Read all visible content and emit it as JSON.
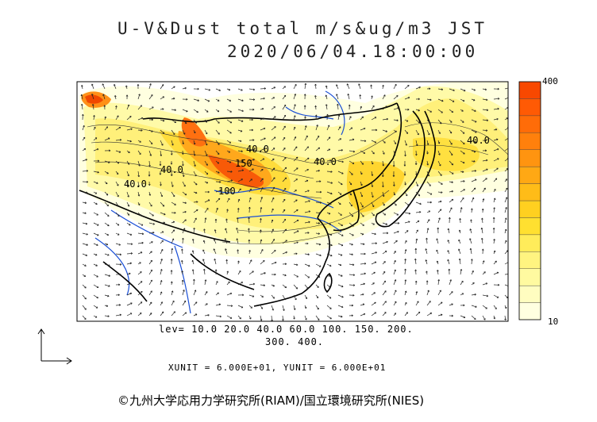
{
  "title": {
    "line1": "U-V&Dust total m/s&ug/m3 JST",
    "line2": "2020/06/04.18:00:00"
  },
  "contour_labels": [
    "40.0",
    "40.0",
    "40.0",
    "40.0",
    "150",
    "100",
    "40.0"
  ],
  "levels": {
    "line1": "lev= 10.0 20.0 40.0 60.0 100. 150. 200.",
    "line2": "300. 400."
  },
  "units": "XUNIT = 6.000E+01, YUNIT = 6.000E+01",
  "colorbar": {
    "max_label": "400",
    "min_label": "10",
    "colors": [
      "#ffffe0",
      "#fffdc0",
      "#fffaa0",
      "#fff480",
      "#ffec5a",
      "#ffe030",
      "#ffd020",
      "#ffbc18",
      "#ffa814",
      "#ff9410",
      "#ff800c",
      "#ff6c08",
      "#ff5a04",
      "#f84800"
    ]
  },
  "colors": {
    "coast": "#000000",
    "river": "#1a4fd6",
    "dust_high": "#f04000"
  },
  "credit": "©九州大学応用力学研究所(RIAM)/国立環境研究所(NIES)"
}
